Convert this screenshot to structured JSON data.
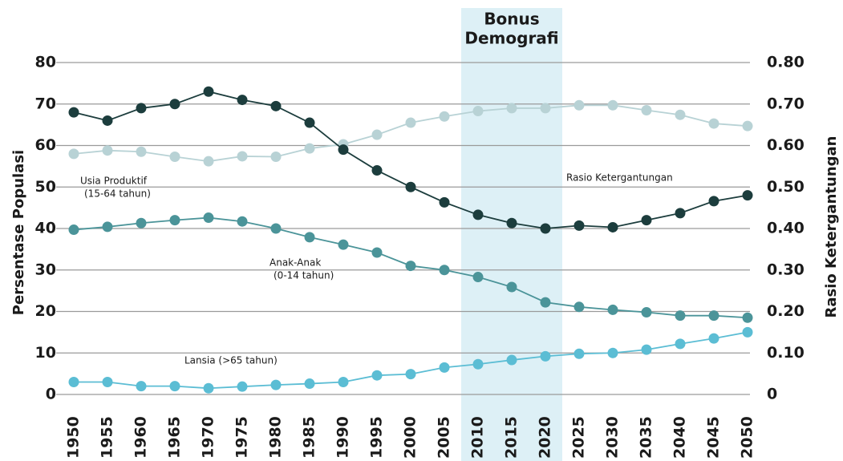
{
  "chart_data": {
    "type": "line",
    "ylabel": "Persentase Populasi",
    "y2label": "Rasio Ketergantungan",
    "x": [
      1950,
      1955,
      1960,
      1965,
      1970,
      1975,
      1980,
      1985,
      1990,
      1995,
      2000,
      2005,
      2010,
      2015,
      2020,
      2025,
      2030,
      2035,
      2040,
      2045,
      2050
    ],
    "xlim": [
      1950,
      2050
    ],
    "ylim": [
      0,
      80
    ],
    "yticks": [
      0,
      10,
      20,
      30,
      40,
      50,
      60,
      70,
      80
    ],
    "y2lim": [
      0,
      0.8
    ],
    "y2ticks": [
      0,
      {
        "value": 0.1,
        "label": "0.10"
      },
      {
        "value": 0.2,
        "label": "0.20"
      },
      {
        "value": 0.3,
        "label": "0.30"
      },
      {
        "value": 0.4,
        "label": "0.40"
      },
      {
        "value": 0.5,
        "label": "0.50"
      },
      {
        "value": 0.6,
        "label": "0.60"
      },
      {
        "value": 0.7,
        "label": "0.70"
      },
      {
        "value": 0.8,
        "label": "0.80"
      }
    ],
    "grid": true,
    "highlight": {
      "label": [
        "Bonus",
        "Demografi"
      ],
      "x": [
        2007.5,
        2022.5
      ],
      "color": "#ddf0f6"
    },
    "annotations": [
      {
        "lines": [
          "Usia Produktif",
          "(15-64 tahun)"
        ]
      },
      {
        "lines": [
          "Rasio Ketergantungan"
        ]
      },
      {
        "lines": [
          "Anak-Anak",
          "(0-14 tahun)"
        ]
      },
      {
        "lines": [
          "Lansia (>65 tahun)"
        ]
      }
    ],
    "series": [
      {
        "name": "Usia Produktif",
        "color": "#b8d2d5",
        "values": [
          58,
          58.8,
          58.5,
          57.3,
          56.2,
          57.4,
          57.3,
          59.3,
          60.3,
          62.6,
          65.5,
          67,
          68.3,
          69,
          69,
          69.7,
          69.7,
          68.5,
          67.4,
          65.3,
          64.7
        ]
      },
      {
        "name": "Rasio Ketergantungan",
        "color": "#1c3d3d",
        "axis": "y2",
        "values": [
          0.68,
          0.66,
          0.69,
          0.7,
          0.73,
          0.71,
          0.695,
          0.655,
          0.59,
          0.54,
          0.5,
          0.463,
          0.433,
          0.413,
          0.4,
          0.407,
          0.403,
          0.42,
          0.437,
          0.466,
          0.48
        ]
      },
      {
        "name": "Anak-Anak",
        "color": "#4b9499",
        "values": [
          39.7,
          40.4,
          41.3,
          42,
          42.6,
          41.7,
          40,
          37.9,
          36.1,
          34.2,
          31,
          30,
          28.3,
          25.9,
          22.2,
          21.1,
          20.4,
          19.8,
          19,
          19,
          18.5
        ]
      },
      {
        "name": "Lansia",
        "color": "#5bbdd4",
        "values": [
          3,
          3,
          2,
          2,
          1.5,
          1.9,
          2.3,
          2.6,
          3,
          4.6,
          4.9,
          6.5,
          7.3,
          8.3,
          9.2,
          9.8,
          10,
          10.8,
          12.2,
          13.5,
          15
        ]
      }
    ]
  }
}
